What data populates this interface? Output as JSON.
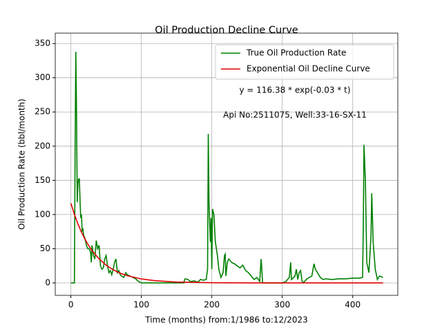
{
  "chart_data": {
    "type": "line",
    "title": "Oil Production Decline Curve",
    "xlabel": "Time (months) from:1/1986 to:12/2023",
    "ylabel": "Oil Production Rate (bbl/month)",
    "annotations": [
      "y = 116.38 * exp(-0.03 * t)",
      "Api No:2511075, Well:33-16-SX-11"
    ],
    "xlim": [
      -22.2,
      464
    ],
    "ylim": [
      -18.2,
      365.3
    ],
    "xticks": [
      0,
      100,
      200,
      300,
      400
    ],
    "yticks": [
      0,
      50,
      100,
      150,
      200,
      250,
      300,
      350
    ],
    "grid": true,
    "legend": "upper right",
    "series": [
      {
        "name": "True Oil Production Rate",
        "color": "#008000",
        "x": [
          0,
          5,
          6,
          7,
          8,
          9,
          10,
          11,
          12,
          13,
          14,
          15,
          16,
          17,
          18,
          20,
          22,
          24,
          26,
          28,
          29,
          30,
          32,
          34,
          36,
          38,
          40,
          42,
          44,
          46,
          48,
          50,
          52,
          54,
          56,
          58,
          60,
          62,
          64,
          66,
          68,
          70,
          72,
          75,
          78,
          80,
          84,
          88,
          92,
          96,
          100,
          130,
          160,
          162,
          166,
          170,
          175,
          180,
          184,
          188,
          192,
          194,
          195,
          196,
          197,
          198,
          199,
          200,
          201,
          203,
          205,
          208,
          210,
          213,
          216,
          218,
          219,
          220,
          222,
          224,
          228,
          232,
          236,
          240,
          244,
          248,
          252,
          256,
          260,
          264,
          268,
          270,
          271,
          272,
          276,
          290,
          300,
          305,
          310,
          312,
          313,
          318,
          320,
          322,
          324,
          326,
          328,
          330,
          334,
          338,
          342,
          345,
          347,
          350,
          354,
          358,
          362,
          370,
          380,
          390,
          400,
          410,
          414,
          415,
          416,
          418,
          420,
          423,
          426,
          427,
          429,
          432,
          435,
          438,
          443
        ],
        "values": [
          0,
          0,
          200,
          338,
          250,
          118,
          145,
          152,
          152,
          120,
          95,
          100,
          75,
          80,
          70,
          65,
          55,
          50,
          50,
          45,
          30,
          55,
          40,
          35,
          62,
          50,
          55,
          25,
          20,
          22,
          35,
          40,
          25,
          15,
          18,
          12,
          20,
          30,
          35,
          15,
          18,
          12,
          10,
          8,
          15,
          12,
          10,
          8,
          6,
          2,
          0,
          0,
          0,
          6,
          5,
          2,
          3,
          1,
          5,
          4,
          5,
          20,
          218,
          120,
          88,
          60,
          95,
          20,
          108,
          100,
          60,
          40,
          20,
          8,
          15,
          40,
          42,
          10,
          30,
          35,
          30,
          28,
          25,
          22,
          26,
          18,
          15,
          10,
          5,
          8,
          2,
          35,
          20,
          0,
          0,
          0,
          0,
          2,
          8,
          30,
          5,
          10,
          20,
          5,
          15,
          18,
          3,
          0,
          5,
          8,
          10,
          28,
          20,
          15,
          8,
          5,
          6,
          5,
          6,
          6,
          7,
          7,
          8,
          80,
          202,
          150,
          30,
          15,
          70,
          131,
          60,
          20,
          5,
          10,
          8
        ]
      },
      {
        "name": "Exponential Oil Decline Curve",
        "color": "#e00000",
        "x": [
          0,
          5,
          10,
          15,
          20,
          25,
          30,
          40,
          50,
          60,
          70,
          80,
          100,
          120,
          150,
          200,
          250,
          300,
          350,
          443
        ],
        "values": [
          116.38,
          100.17,
          86.22,
          74.21,
          63.87,
          54.97,
          47.32,
          35.05,
          25.97,
          19.24,
          14.25,
          10.56,
          5.79,
          3.18,
          1.3,
          0.29,
          0.06,
          0.01,
          0,
          0
        ]
      }
    ]
  }
}
